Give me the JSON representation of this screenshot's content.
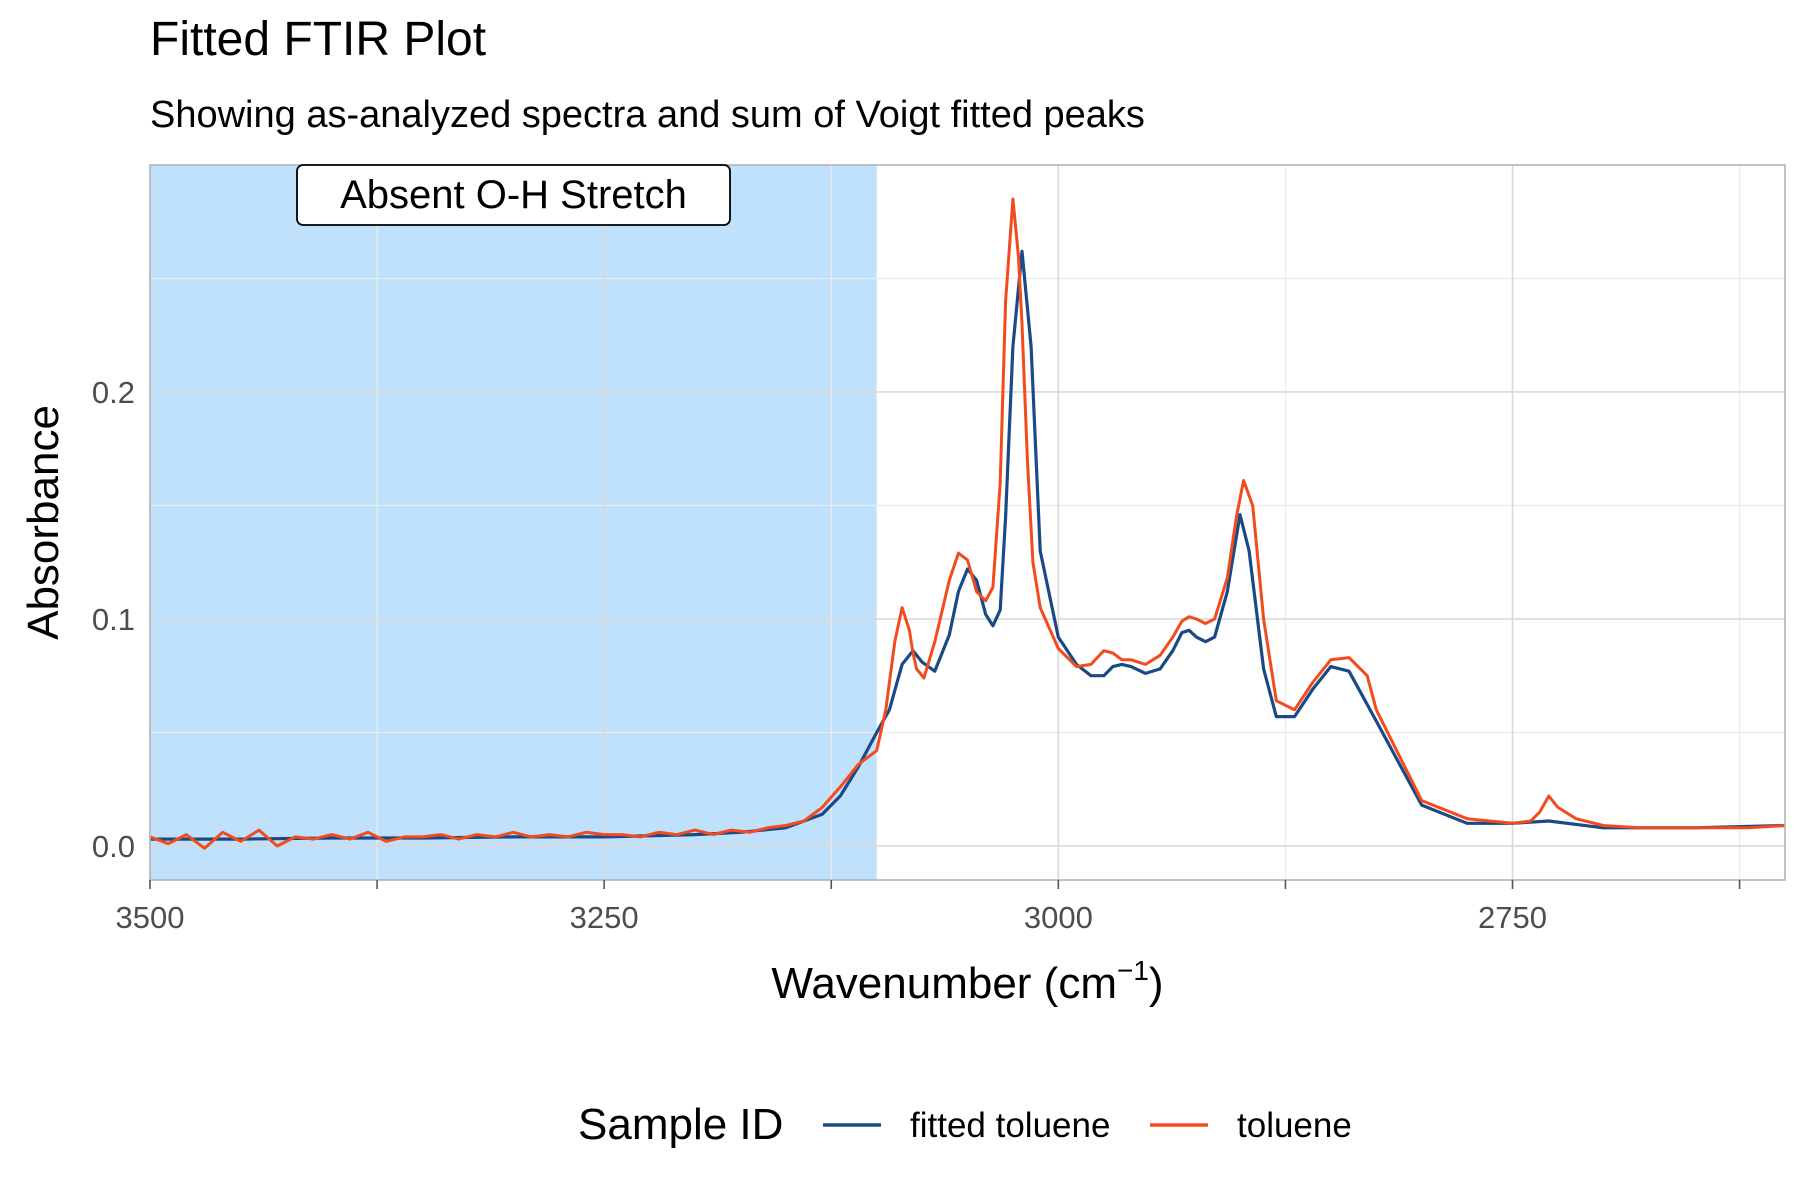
{
  "title": "Fitted FTIR Plot",
  "subtitle": "Showing as-analyzed spectra and sum of Voigt fitted peaks",
  "chart_data": {
    "type": "line",
    "title": "Fitted FTIR Plot",
    "subtitle": "Showing as-analyzed spectra and sum of Voigt fitted peaks",
    "xlabel": "Wavenumber (cm",
    "xlabel_superscript": "−1",
    "xlabel_suffix": ")",
    "ylabel": "Absorbance",
    "xlim": [
      3500,
      2600
    ],
    "x_reversed": true,
    "ylim": [
      -0.015,
      0.3
    ],
    "x_ticks": [
      3500,
      3250,
      3000,
      2750
    ],
    "y_ticks": [
      0.0,
      0.1,
      0.2
    ],
    "grid": true,
    "legend": {
      "title": "Sample ID",
      "position": "bottom"
    },
    "highlight_region": {
      "x_from": 3500,
      "x_to": 3100,
      "color": "#bfe1fb",
      "label": "Absent O-H Stretch"
    },
    "series": [
      {
        "name": "fitted toluene",
        "color": "#1a4a86",
        "x": [
          3500,
          3450,
          3400,
          3350,
          3300,
          3250,
          3200,
          3175,
          3150,
          3130,
          3120,
          3110,
          3100,
          3093,
          3086,
          3080,
          3075,
          3068,
          3060,
          3055,
          3050,
          3045,
          3040,
          3036,
          3032,
          3029,
          3025,
          3020,
          3015,
          3010,
          3000,
          2990,
          2982,
          2975,
          2970,
          2965,
          2960,
          2952,
          2944,
          2937,
          2932,
          2928,
          2924,
          2919,
          2914,
          2907,
          2900,
          2895,
          2887,
          2880,
          2870,
          2860,
          2850,
          2840,
          2825,
          2800,
          2775,
          2750,
          2730,
          2700,
          2650,
          2600
        ],
        "y": [
          0.003,
          0.003,
          0.0035,
          0.0035,
          0.004,
          0.004,
          0.005,
          0.006,
          0.008,
          0.014,
          0.022,
          0.035,
          0.05,
          0.06,
          0.08,
          0.086,
          0.081,
          0.077,
          0.093,
          0.112,
          0.122,
          0.117,
          0.102,
          0.097,
          0.104,
          0.145,
          0.22,
          0.262,
          0.22,
          0.13,
          0.092,
          0.08,
          0.075,
          0.075,
          0.079,
          0.08,
          0.079,
          0.076,
          0.078,
          0.086,
          0.094,
          0.095,
          0.092,
          0.09,
          0.092,
          0.112,
          0.146,
          0.13,
          0.078,
          0.057,
          0.057,
          0.069,
          0.079,
          0.077,
          0.055,
          0.018,
          0.01,
          0.01,
          0.011,
          0.008,
          0.008,
          0.009
        ]
      },
      {
        "name": "toluene",
        "color": "#f24b1e",
        "x": [
          3500,
          3490,
          3480,
          3470,
          3460,
          3450,
          3440,
          3430,
          3420,
          3410,
          3400,
          3390,
          3380,
          3370,
          3360,
          3350,
          3340,
          3330,
          3320,
          3310,
          3300,
          3290,
          3280,
          3270,
          3260,
          3250,
          3240,
          3230,
          3220,
          3210,
          3200,
          3190,
          3180,
          3170,
          3160,
          3150,
          3140,
          3130,
          3120,
          3110,
          3100,
          3095,
          3090,
          3086,
          3082,
          3080,
          3078,
          3074,
          3068,
          3060,
          3055,
          3050,
          3045,
          3040,
          3036,
          3032,
          3029,
          3025,
          3022,
          3020,
          3017,
          3014,
          3010,
          3000,
          2990,
          2982,
          2975,
          2970,
          2965,
          2960,
          2952,
          2944,
          2937,
          2932,
          2928,
          2924,
          2919,
          2914,
          2907,
          2902,
          2898,
          2893,
          2887,
          2880,
          2870,
          2860,
          2850,
          2840,
          2830,
          2825,
          2800,
          2775,
          2750,
          2740,
          2735,
          2730,
          2725,
          2715,
          2700,
          2680,
          2660,
          2640,
          2620,
          2600
        ],
        "y": [
          0.004,
          0.001,
          0.005,
          -0.001,
          0.006,
          0.002,
          0.007,
          0.0,
          0.004,
          0.003,
          0.005,
          0.003,
          0.006,
          0.002,
          0.004,
          0.004,
          0.005,
          0.003,
          0.005,
          0.004,
          0.006,
          0.004,
          0.005,
          0.004,
          0.006,
          0.005,
          0.005,
          0.004,
          0.006,
          0.005,
          0.007,
          0.005,
          0.007,
          0.006,
          0.008,
          0.009,
          0.011,
          0.017,
          0.026,
          0.036,
          0.042,
          0.06,
          0.09,
          0.105,
          0.095,
          0.085,
          0.078,
          0.074,
          0.09,
          0.117,
          0.129,
          0.126,
          0.112,
          0.108,
          0.114,
          0.16,
          0.24,
          0.285,
          0.26,
          0.23,
          0.17,
          0.125,
          0.105,
          0.087,
          0.079,
          0.08,
          0.086,
          0.085,
          0.082,
          0.082,
          0.08,
          0.084,
          0.092,
          0.099,
          0.101,
          0.1,
          0.098,
          0.1,
          0.118,
          0.145,
          0.161,
          0.15,
          0.1,
          0.064,
          0.06,
          0.072,
          0.082,
          0.083,
          0.075,
          0.06,
          0.02,
          0.012,
          0.01,
          0.011,
          0.015,
          0.022,
          0.017,
          0.012,
          0.009,
          0.008,
          0.008,
          0.008,
          0.008,
          0.009
        ]
      }
    ]
  }
}
